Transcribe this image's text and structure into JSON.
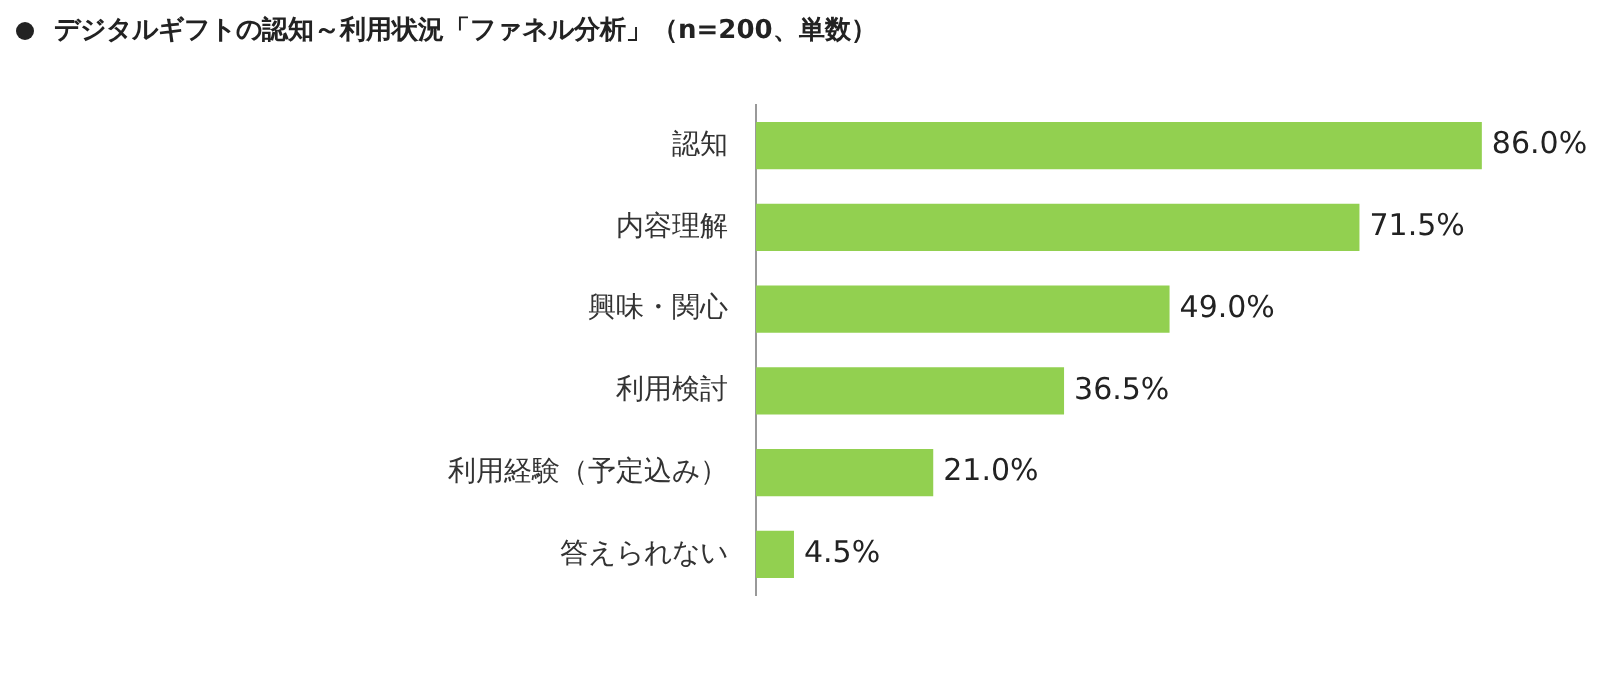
{
  "chart_data": {
    "type": "bar",
    "orientation": "horizontal",
    "title": "デジタルギフトの認知～利用状況「ファネル分析」（n=200、単数）",
    "categories": [
      "認知",
      "内容理解",
      "興味・関心",
      "利用検討",
      "利用経験（予定込み）",
      "答えられない"
    ],
    "values": [
      86.0,
      71.5,
      49.0,
      36.5,
      21.0,
      4.5
    ],
    "value_labels": [
      "86.0%",
      "71.5%",
      "49.0%",
      "36.5%",
      "21.0%",
      "4.5%"
    ],
    "color": "#92d050",
    "xlim": [
      0,
      100
    ],
    "legend": false,
    "tick_labels": "y"
  }
}
